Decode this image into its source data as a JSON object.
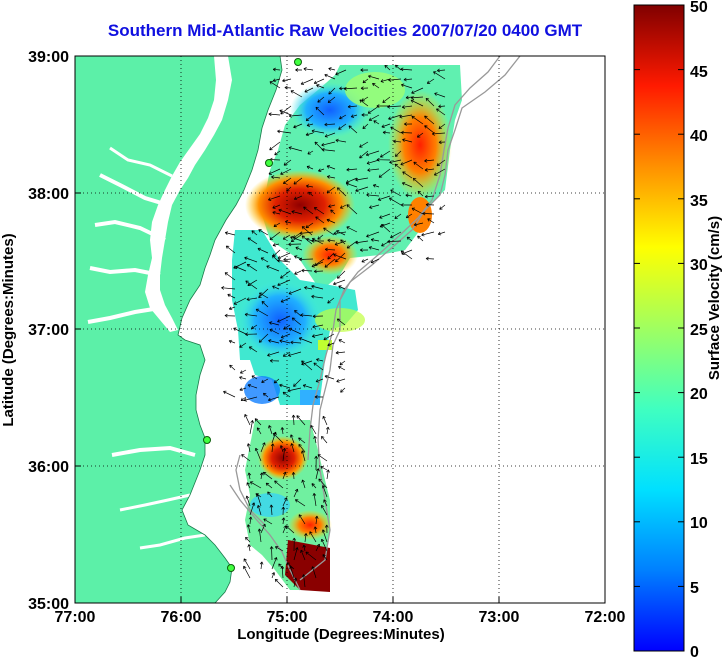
{
  "title": "Southern Mid-Atlantic Raw Velocities 2007/07/20 0400 GMT",
  "xaxis": {
    "label": "Longitude (Degrees:Minutes)",
    "ticks": [
      "77:00",
      "76:00",
      "75:00",
      "74:00",
      "73:00",
      "72:00"
    ]
  },
  "yaxis": {
    "label": "Latitude (Degrees:Minutes)",
    "ticks": [
      "39:00",
      "38:00",
      "37:00",
      "36:00",
      "35:00"
    ]
  },
  "colorbar": {
    "label": "Surface Velocity (cm/s)",
    "ticks": [
      "50",
      "45",
      "40",
      "35",
      "30",
      "25",
      "20",
      "15",
      "10",
      "5",
      "0"
    ],
    "min": 0,
    "max": 50
  },
  "colors": {
    "land": "#5cf0a8",
    "title": "#1010e0",
    "isobath": "#999999"
  },
  "map": {
    "lon_range": [
      -77,
      -72
    ],
    "lat_range": [
      35,
      39
    ],
    "grid": "dotted"
  }
}
